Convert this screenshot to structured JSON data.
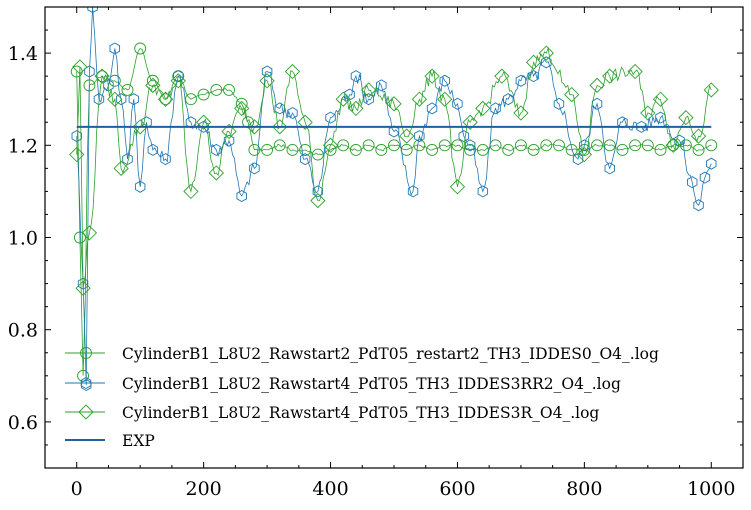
{
  "chart_data": {
    "type": "line",
    "title": "",
    "xlabel": "",
    "ylabel": "",
    "xlim": [
      -50,
      1050
    ],
    "ylim": [
      0.5,
      1.5
    ],
    "xticks": [
      "0",
      "200",
      "400",
      "600",
      "800",
      "1000"
    ],
    "yticks": [
      "0.6",
      "0.8",
      "1.0",
      "1.2",
      "1.4"
    ],
    "grid": false,
    "legend_position": "lower-left",
    "series": [
      {
        "name": "CylinderB1_L8U2_Rawstart2_PdT05_restart2_TH3_IDDES0_O4_.log",
        "color": "#2ca02c",
        "marker": "circle",
        "x": [
          0,
          5,
          10,
          20,
          40,
          60,
          80,
          100,
          120,
          140,
          160,
          180,
          200,
          220,
          240,
          260,
          270,
          280,
          300,
          320,
          340,
          360,
          380,
          400,
          420,
          440,
          460,
          480,
          500,
          520,
          540,
          560,
          580,
          600,
          620,
          640,
          660,
          680,
          700,
          720,
          740,
          760,
          780,
          800,
          820,
          840,
          860,
          880,
          900,
          920,
          940,
          960,
          980,
          1000
        ],
        "y": [
          1.36,
          1.0,
          0.7,
          1.33,
          1.35,
          1.34,
          1.32,
          1.41,
          1.34,
          1.3,
          1.35,
          1.3,
          1.31,
          1.32,
          1.32,
          1.29,
          1.25,
          1.19,
          1.19,
          1.2,
          1.19,
          1.19,
          1.18,
          1.19,
          1.2,
          1.19,
          1.2,
          1.19,
          1.2,
          1.19,
          1.2,
          1.19,
          1.2,
          1.2,
          1.19,
          1.19,
          1.2,
          1.19,
          1.2,
          1.19,
          1.2,
          1.2,
          1.19,
          1.19,
          1.2,
          1.2,
          1.19,
          1.2,
          1.2,
          1.19,
          1.2,
          1.2,
          1.19,
          1.2
        ]
      },
      {
        "name": "CylinderB1_L8U2_Rawstart4_PdT05_TH3_IDDES3RR2_O4_.log",
        "color": "#1f77b4",
        "marker": "hexagon",
        "x": [
          0,
          10,
          15,
          20,
          25,
          35,
          50,
          60,
          70,
          80,
          90,
          100,
          110,
          120,
          140,
          160,
          180,
          200,
          220,
          240,
          260,
          280,
          300,
          320,
          340,
          360,
          380,
          400,
          430,
          440,
          460,
          480,
          500,
          530,
          540,
          560,
          580,
          600,
          610,
          620,
          640,
          660,
          680,
          700,
          720,
          740,
          760,
          790,
          800,
          820,
          840,
          860,
          890,
          920,
          950,
          970,
          980,
          990,
          1000
        ],
        "y": [
          1.22,
          0.9,
          0.68,
          1.36,
          1.5,
          1.3,
          1.33,
          1.41,
          1.3,
          1.17,
          1.3,
          1.11,
          1.25,
          1.19,
          1.17,
          1.35,
          1.25,
          1.24,
          1.19,
          1.21,
          1.09,
          1.15,
          1.36,
          1.28,
          1.27,
          1.17,
          1.1,
          1.26,
          1.31,
          1.35,
          1.3,
          1.33,
          1.23,
          1.1,
          1.22,
          1.28,
          1.34,
          1.29,
          1.22,
          1.2,
          1.1,
          1.28,
          1.3,
          1.34,
          1.35,
          1.38,
          1.29,
          1.17,
          1.2,
          1.29,
          1.15,
          1.25,
          1.24,
          1.26,
          1.21,
          1.12,
          1.07,
          1.13,
          1.16
        ]
      },
      {
        "name": "CylinderB1_L8U2_Rawstart4_PdT05_TH3_IDDES3R_O4_.log",
        "color": "#2ca02c",
        "marker": "diamond",
        "x": [
          0,
          5,
          10,
          20,
          40,
          60,
          70,
          100,
          120,
          140,
          160,
          180,
          200,
          220,
          240,
          260,
          280,
          300,
          320,
          340,
          360,
          380,
          400,
          420,
          440,
          460,
          500,
          520,
          540,
          560,
          580,
          600,
          620,
          640,
          670,
          700,
          720,
          740,
          780,
          800,
          820,
          840,
          880,
          900,
          920,
          940,
          960,
          980,
          1000
        ],
        "y": [
          1.18,
          1.37,
          0.89,
          1.01,
          1.35,
          1.3,
          1.15,
          1.24,
          1.33,
          1.3,
          1.34,
          1.1,
          1.25,
          1.14,
          1.23,
          1.28,
          1.24,
          1.34,
          1.24,
          1.36,
          1.25,
          1.08,
          1.2,
          1.3,
          1.28,
          1.32,
          1.29,
          1.22,
          1.3,
          1.35,
          1.3,
          1.11,
          1.25,
          1.28,
          1.35,
          1.27,
          1.38,
          1.4,
          1.31,
          1.18,
          1.33,
          1.35,
          1.36,
          1.27,
          1.3,
          1.2,
          1.26,
          1.22,
          1.32
        ]
      },
      {
        "name": "EXP",
        "color": "#1f5fa0",
        "marker": "none",
        "x": [
          0,
          1000
        ],
        "y": [
          1.24,
          1.24
        ]
      }
    ]
  }
}
